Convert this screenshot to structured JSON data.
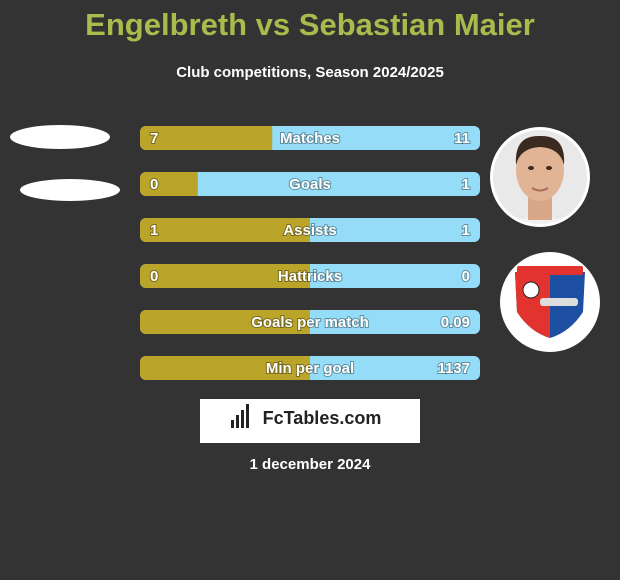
{
  "header": {
    "title": "Engelbreth vs Sebastian Maier",
    "subtitle": "Club competitions, Season 2024/2025"
  },
  "rows": [
    {
      "label": "Matches",
      "left": 7,
      "right": 11
    },
    {
      "label": "Goals",
      "left": 0,
      "right": 1
    },
    {
      "label": "Assists",
      "left": 1,
      "right": 1
    },
    {
      "label": "Hattricks",
      "left": 0,
      "right": 0
    },
    {
      "label": "Goals per match",
      "right": 0.09
    },
    {
      "label": "Min per goal",
      "right": 1137
    }
  ],
  "brand": "FcTables.com",
  "date": "1 december 2024"
}
